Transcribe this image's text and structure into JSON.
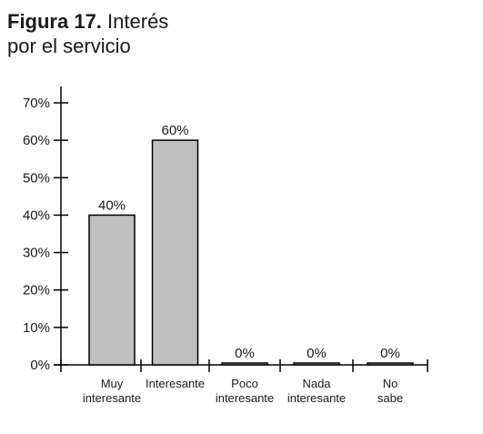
{
  "title": {
    "figure_label": "Figura 17.",
    "text_line1": "Interés",
    "text_line2": "por el servicio"
  },
  "chart_data": {
    "type": "bar",
    "title": "Figura 17. Interés por el servicio",
    "categories": [
      [
        "Muy",
        "interesante"
      ],
      [
        "Interesante"
      ],
      [
        "Poco",
        "interesante"
      ],
      [
        "Nada",
        "interesante"
      ],
      [
        "No",
        "sabe"
      ]
    ],
    "values": [
      40,
      60,
      0,
      0,
      0
    ],
    "data_labels": [
      "40%",
      "60%",
      "0%",
      "0%",
      "0%"
    ],
    "ylim": [
      0,
      70
    ],
    "yticks": [
      0,
      10,
      20,
      30,
      40,
      50,
      60,
      70
    ],
    "ytick_labels": [
      "0%",
      "10%",
      "20%",
      "30%",
      "40%",
      "50%",
      "60%",
      "70%"
    ],
    "bar_color": "#c0c0c0",
    "bar_edge_color": "#000000",
    "grid": false,
    "xlabel": "",
    "ylabel": ""
  }
}
